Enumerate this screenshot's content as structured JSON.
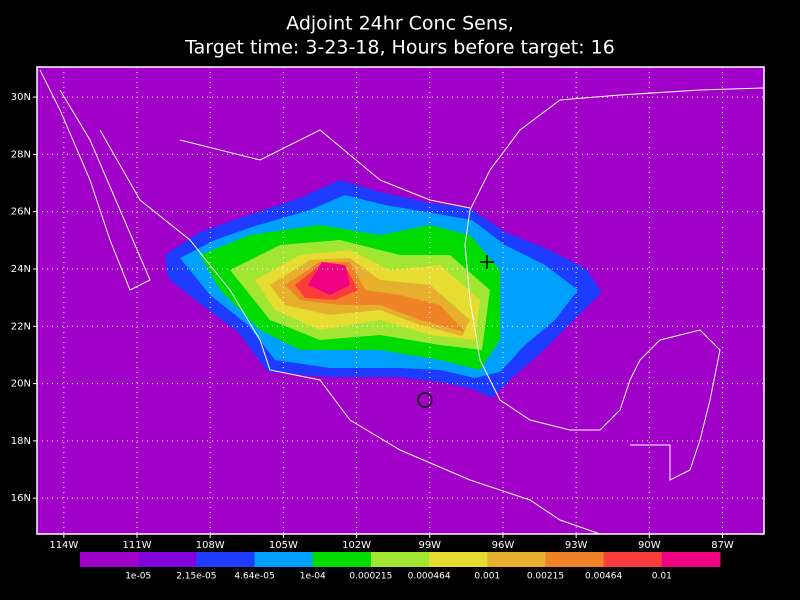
{
  "title": [
    "Adjoint 24hr Conc Sens,",
    "Target time: 3-23-18, Hours before target: 16"
  ],
  "map": {
    "xlim": [
      -115.1,
      -85.3
    ],
    "ylim": [
      14.75,
      31.05
    ],
    "xticks": [
      {
        "value": -114,
        "label": "114W"
      },
      {
        "value": -111,
        "label": "111W"
      },
      {
        "value": -108,
        "label": "108W"
      },
      {
        "value": -105,
        "label": "105W"
      },
      {
        "value": -102,
        "label": "102W"
      },
      {
        "value": -99,
        "label": "99W"
      },
      {
        "value": -96,
        "label": "96W"
      },
      {
        "value": -93,
        "label": "93W"
      },
      {
        "value": -90,
        "label": "90W"
      },
      {
        "value": -87,
        "label": "87W"
      }
    ],
    "yticks": [
      {
        "value": 30,
        "label": "30N"
      },
      {
        "value": 28,
        "label": "28N"
      },
      {
        "value": 26,
        "label": "26N"
      },
      {
        "value": 24,
        "label": "24N"
      },
      {
        "value": 22,
        "label": "22N"
      },
      {
        "value": 20,
        "label": "20N"
      },
      {
        "value": 18,
        "label": "18N"
      },
      {
        "value": 16,
        "label": "16N"
      }
    ],
    "grid": true
  },
  "colorbar": {
    "labels": [
      "1e-05",
      "2.15e-05",
      "4.64e-05",
      "1e-04",
      "0.000215",
      "0.000464",
      "0.001",
      "0.00215",
      "0.00464",
      "0.01"
    ],
    "colors": [
      "#a000c8",
      "#8200dc",
      "#1e3cff",
      "#00a0ff",
      "#00dc00",
      "#a0e632",
      "#e6dc32",
      "#e6af2d",
      "#f08228",
      "#fa3c3c",
      "#f00082"
    ]
  }
}
